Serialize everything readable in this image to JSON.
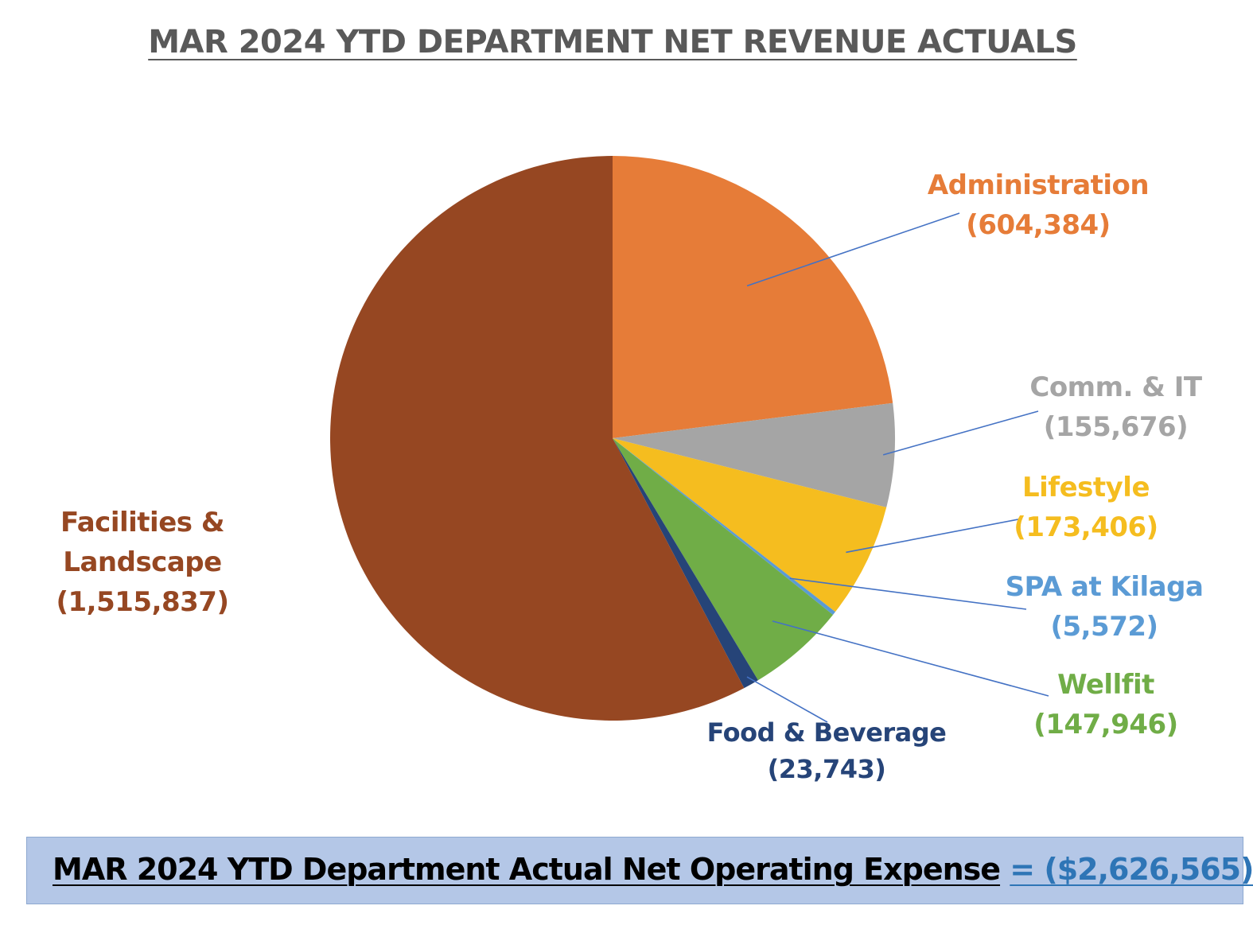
{
  "chart_data": {
    "type": "pie",
    "title": "MAR 2024 YTD DEPARTMENT NET REVENUE ACTUALS",
    "slices": [
      {
        "label": "Administration",
        "value_label": "(604,384)",
        "value": -604384,
        "color": "#e67c38"
      },
      {
        "label": "Comm. & IT",
        "value_label": "(155,676)",
        "value": -155676,
        "color": "#a5a5a5"
      },
      {
        "label": "Lifestyle",
        "value_label": "(173,406)",
        "value": -173406,
        "color": "#f5bd1f"
      },
      {
        "label": "SPA at Kilaga",
        "value_label": "(5,572)",
        "value": -5572,
        "color": "#5b9bd5"
      },
      {
        "label": "Wellfit",
        "value_label": "(147,946)",
        "value": -147946,
        "color": "#70ad47"
      },
      {
        "label": "Food & Beverage",
        "value_label": "(23,743)",
        "value": -23743,
        "color": "#264478"
      },
      {
        "label": "Facilities & Landscape",
        "value_label": "(1,515,837)",
        "value": -1515837,
        "color": "#964722"
      }
    ],
    "leader_line_color": "#4472c4"
  },
  "footer": {
    "label": "MAR 2024 YTD Department Actual Net Operating Expense",
    "value": "= ($2,626,565)"
  }
}
